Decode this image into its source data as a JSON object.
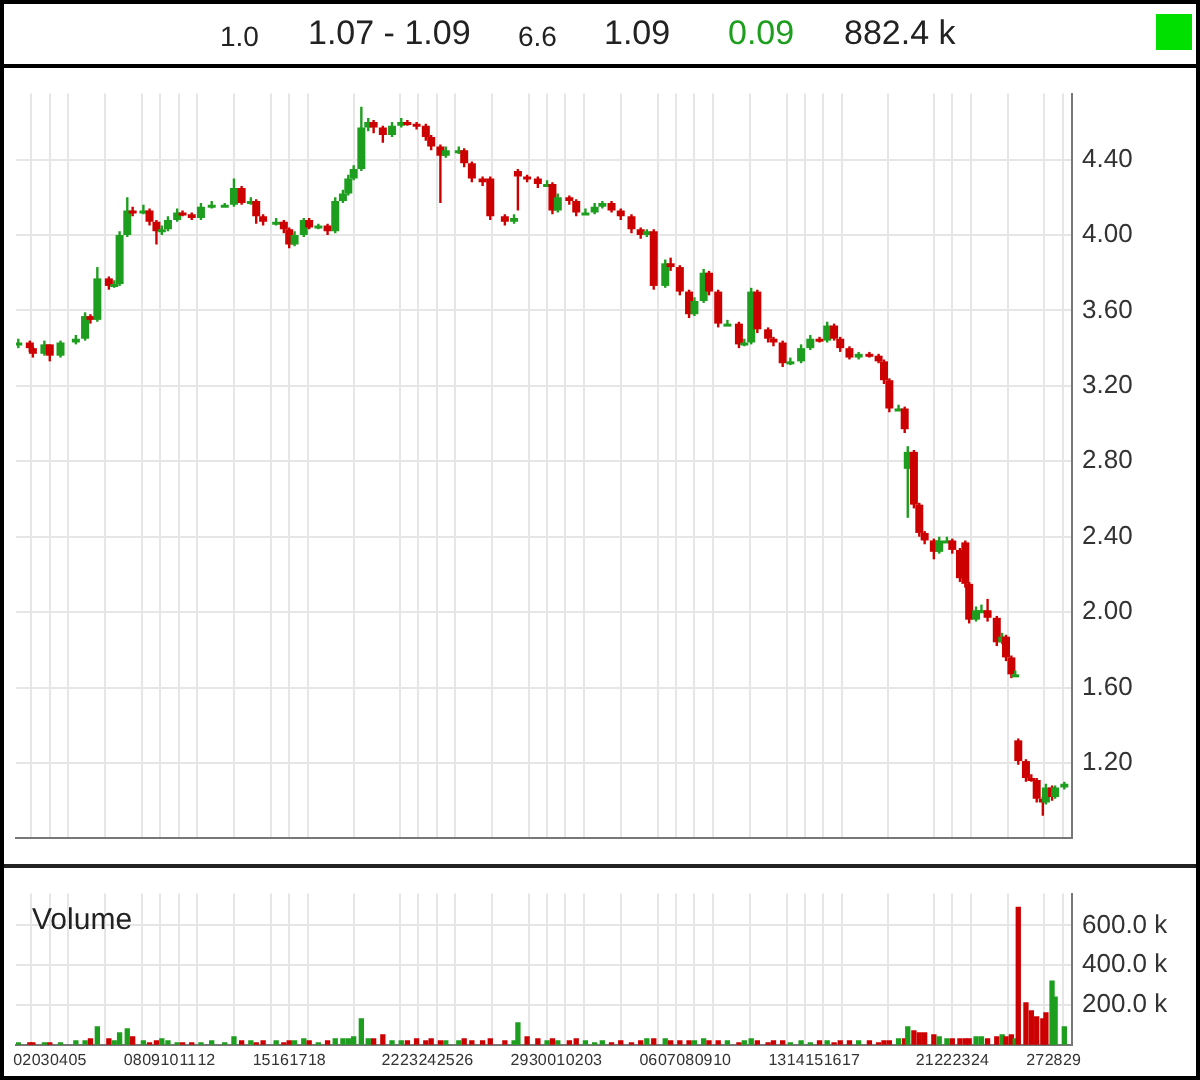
{
  "chart_data": [
    {
      "type": "candlestick",
      "annotations": [
        "1.0",
        "1.07 - 1.09",
        "6.6",
        "1.09",
        "0.09",
        "882.4 k"
      ],
      "x": [
        "--04-01T19:00",
        "--04-02T10:00",
        "--04-02T14:00",
        "--04-03T05:00",
        "--04-03T12:00",
        "--04-04T02:00",
        "--04-04T22:00",
        "--04-05T10:00",
        "--04-05T17:00",
        "--04-06T02:00",
        "--04-06T17:00",
        "--04-07T00:00",
        "--04-07T07:00",
        "--04-07T17:00",
        "--04-08T00:00",
        "--04-08T14:00",
        "--04-08T22:00",
        "--04-09T07:00",
        "--04-09T14:00",
        "--04-09T22:00",
        "--04-10T10:00",
        "--04-10T17:00",
        "--04-11T05:00",
        "--04-11T17:00",
        "--04-12T07:00",
        "--04-13T00:00",
        "--04-13T12:00",
        "--04-13T22:00",
        "--04-14T10:00",
        "--04-14T17:00",
        "--04-15T02:00",
        "--04-15T19:00",
        "--04-16T05:00",
        "--04-16T12:00",
        "--04-16T19:00",
        "--04-17T07:00",
        "--04-17T14:00",
        "--04-18T02:00",
        "--04-18T14:00",
        "--04-19T00:00",
        "--04-19T10:00",
        "--04-19T17:00",
        "--04-20T00:00",
        "--04-20T10:00",
        "--04-20T19:00",
        "--04-21T02:00",
        "--04-21T14:00",
        "--04-22T02:00",
        "--04-22T14:00",
        "--04-22T22:00",
        "--04-23T10:00",
        "--04-23T22:00",
        "--04-24T05:00",
        "--04-24T17:00",
        "--04-25T00:00",
        "--04-25T17:00",
        "--04-26T00:00",
        "--04-26T10:00",
        "--04-27T00:00",
        "--04-27T10:00",
        "--04-28T05:00",
        "--04-28T17:00",
        "--04-28T22:00",
        "--04-29T10:00",
        "--04-30T00:00",
        "--04-30T12:00",
        "--04-30T19:00",
        "--05-01T02:00",
        "--05-01T17:00",
        "--05-02T02:00",
        "--05-02T14:00",
        "--05-03T02:00",
        "--05-03T12:00",
        "--05-04T00:00",
        "--05-04T12:00",
        "--05-05T02:00",
        "--05-05T14:00",
        "--05-05T22:00",
        "--05-06T07:00",
        "--05-06T22:00",
        "--05-07T05:00",
        "--05-07T17:00",
        "--05-08T05:00",
        "--05-08T12:00",
        "--05-09T00:00",
        "--05-09T07:00",
        "--05-09T19:00",
        "--05-10T07:00",
        "--05-10T22:00",
        "--05-11T05:00",
        "--05-11T14:00",
        "--05-11T22:00",
        "--05-12T12:00",
        "--05-12T19:00",
        "--05-13T07:00",
        "--05-13T17:00",
        "--05-14T07:00",
        "--05-14T19:00",
        "--05-15T07:00",
        "--05-15T17:00",
        "--05-16T02:00",
        "--05-16T10:00",
        "--05-16T22:00",
        "--05-17T10:00",
        "--05-18T00:00",
        "--05-18T12:00",
        "--05-18T19:00",
        "--05-19T02:00",
        "--05-19T14:00",
        "--05-19T22:00",
        "--05-20T02:00",
        "--05-20T10:00",
        "--05-20T17:00",
        "--05-21T00:00",
        "--05-21T12:00",
        "--05-21T19:00",
        "--05-22T05:00",
        "--05-22T12:00",
        "--05-22T22:00",
        "--05-23T05:00",
        "--05-23T10:00",
        "--05-23T19:00",
        "--05-24T02:00",
        "--05-24T10:00",
        "--05-24T22:00",
        "--05-25T05:00",
        "--05-25T10:00",
        "--05-25T17:00",
        "--05-25T22:00",
        "--05-26T02:00",
        "--05-26T12:00",
        "--05-26T19:00",
        "--05-27T02:00",
        "--05-27T10:00",
        "--05-27T14:00",
        "--05-27T22:00",
        "--05-28T02:00",
        "--05-28T14:00"
      ],
      "ohlc": [
        [
          3.42,
          3.45,
          3.4,
          3.43
        ],
        [
          3.43,
          3.44,
          3.38,
          3.4
        ],
        [
          3.4,
          3.41,
          3.35,
          3.37
        ],
        [
          3.37,
          3.44,
          3.36,
          3.42
        ],
        [
          3.42,
          3.42,
          3.33,
          3.36
        ],
        [
          3.36,
          3.44,
          3.35,
          3.43
        ],
        [
          3.43,
          3.47,
          3.42,
          3.45
        ],
        [
          3.45,
          3.59,
          3.44,
          3.57
        ],
        [
          3.57,
          3.58,
          3.53,
          3.55
        ],
        [
          3.55,
          3.83,
          3.54,
          3.77
        ],
        [
          3.77,
          3.78,
          3.71,
          3.73
        ],
        [
          3.73,
          3.76,
          3.72,
          3.74
        ],
        [
          3.74,
          4.02,
          3.73,
          4.0
        ],
        [
          4.0,
          4.2,
          3.99,
          4.13
        ],
        [
          4.13,
          4.15,
          4.1,
          4.12
        ],
        [
          4.12,
          4.16,
          4.11,
          4.13
        ],
        [
          4.13,
          4.14,
          4.05,
          4.07
        ],
        [
          4.07,
          4.08,
          3.95,
          4.02
        ],
        [
          4.02,
          4.05,
          4.0,
          4.03
        ],
        [
          4.03,
          4.1,
          4.02,
          4.08
        ],
        [
          4.08,
          4.14,
          4.07,
          4.12
        ],
        [
          4.12,
          4.13,
          4.1,
          4.11
        ],
        [
          4.11,
          4.12,
          4.08,
          4.09
        ],
        [
          4.09,
          4.17,
          4.08,
          4.15
        ],
        [
          4.15,
          4.18,
          4.14,
          4.16
        ],
        [
          4.16,
          4.17,
          4.15,
          4.16
        ],
        [
          4.16,
          4.3,
          4.15,
          4.25
        ],
        [
          4.25,
          4.26,
          4.16,
          4.17
        ],
        [
          4.17,
          4.2,
          4.16,
          4.18
        ],
        [
          4.18,
          4.19,
          4.06,
          4.1
        ],
        [
          4.1,
          4.11,
          4.05,
          4.07
        ],
        [
          4.07,
          4.09,
          4.05,
          4.07
        ],
        [
          4.07,
          4.08,
          4.01,
          4.03
        ],
        [
          4.03,
          4.04,
          3.93,
          3.95
        ],
        [
          3.95,
          4.02,
          3.94,
          4.0
        ],
        [
          4.0,
          4.09,
          3.99,
          4.08
        ],
        [
          4.08,
          4.09,
          4.03,
          4.04
        ],
        [
          4.04,
          4.06,
          4.03,
          4.05
        ],
        [
          4.05,
          4.06,
          4.0,
          4.02
        ],
        [
          4.02,
          4.2,
          4.01,
          4.18
        ],
        [
          4.18,
          4.24,
          4.17,
          4.22
        ],
        [
          4.22,
          4.32,
          4.21,
          4.3
        ],
        [
          4.3,
          4.37,
          4.29,
          4.35
        ],
        [
          4.35,
          4.68,
          4.34,
          4.57
        ],
        [
          4.57,
          4.62,
          4.55,
          4.6
        ],
        [
          4.6,
          4.61,
          4.54,
          4.57
        ],
        [
          4.57,
          4.58,
          4.49,
          4.53
        ],
        [
          4.53,
          4.6,
          4.52,
          4.58
        ],
        [
          4.58,
          4.62,
          4.57,
          4.6
        ],
        [
          4.6,
          4.61,
          4.58,
          4.59
        ],
        [
          4.59,
          4.6,
          4.56,
          4.58
        ],
        [
          4.58,
          4.59,
          4.5,
          4.52
        ],
        [
          4.52,
          4.53,
          4.45,
          4.47
        ],
        [
          4.47,
          4.48,
          4.17,
          4.42
        ],
        [
          4.42,
          4.47,
          4.41,
          4.45
        ],
        [
          4.45,
          4.47,
          4.43,
          4.45
        ],
        [
          4.45,
          4.46,
          4.36,
          4.38
        ],
        [
          4.38,
          4.39,
          4.28,
          4.3
        ],
        [
          4.3,
          4.31,
          4.26,
          4.28
        ],
        [
          4.3,
          4.31,
          4.08,
          4.1
        ],
        [
          4.1,
          4.11,
          4.05,
          4.07
        ],
        [
          4.07,
          4.11,
          4.06,
          4.09
        ],
        [
          4.34,
          4.35,
          4.13,
          4.31
        ],
        [
          4.31,
          4.32,
          4.28,
          4.3
        ],
        [
          4.3,
          4.31,
          4.25,
          4.27
        ],
        [
          4.27,
          4.29,
          4.26,
          4.27
        ],
        [
          4.27,
          4.28,
          4.11,
          4.13
        ],
        [
          4.13,
          4.22,
          4.12,
          4.2
        ],
        [
          4.2,
          4.21,
          4.16,
          4.18
        ],
        [
          4.18,
          4.19,
          4.1,
          4.12
        ],
        [
          4.12,
          4.14,
          4.11,
          4.12
        ],
        [
          4.12,
          4.17,
          4.11,
          4.15
        ],
        [
          4.15,
          4.18,
          4.14,
          4.17
        ],
        [
          4.17,
          4.18,
          4.12,
          4.13
        ],
        [
          4.13,
          4.14,
          4.08,
          4.1
        ],
        [
          4.1,
          4.11,
          4.01,
          4.03
        ],
        [
          4.03,
          4.04,
          3.98,
          4.0
        ],
        [
          4.0,
          4.03,
          3.99,
          4.02
        ],
        [
          4.02,
          4.03,
          3.71,
          3.73
        ],
        [
          3.73,
          3.87,
          3.72,
          3.85
        ],
        [
          3.85,
          3.88,
          3.81,
          3.83
        ],
        [
          3.83,
          3.84,
          3.68,
          3.7
        ],
        [
          3.7,
          3.71,
          3.56,
          3.58
        ],
        [
          3.58,
          3.67,
          3.57,
          3.65
        ],
        [
          3.65,
          3.82,
          3.64,
          3.8
        ],
        [
          3.8,
          3.81,
          3.68,
          3.7
        ],
        [
          3.7,
          3.71,
          3.51,
          3.53
        ],
        [
          3.53,
          3.55,
          3.52,
          3.53
        ],
        [
          3.53,
          3.54,
          3.4,
          3.42
        ],
        [
          3.42,
          3.45,
          3.41,
          3.43
        ],
        [
          3.43,
          3.72,
          3.42,
          3.7
        ],
        [
          3.7,
          3.71,
          3.48,
          3.5
        ],
        [
          3.5,
          3.51,
          3.43,
          3.45
        ],
        [
          3.45,
          3.46,
          3.41,
          3.43
        ],
        [
          3.43,
          3.44,
          3.3,
          3.32
        ],
        [
          3.32,
          3.35,
          3.31,
          3.33
        ],
        [
          3.33,
          3.42,
          3.32,
          3.4
        ],
        [
          3.4,
          3.47,
          3.39,
          3.45
        ],
        [
          3.45,
          3.46,
          3.43,
          3.44
        ],
        [
          3.44,
          3.54,
          3.43,
          3.52
        ],
        [
          3.52,
          3.53,
          3.44,
          3.45
        ],
        [
          3.45,
          3.46,
          3.38,
          3.4
        ],
        [
          3.4,
          3.41,
          3.34,
          3.35
        ],
        [
          3.35,
          3.38,
          3.34,
          3.37
        ],
        [
          3.37,
          3.38,
          3.35,
          3.36
        ],
        [
          3.36,
          3.37,
          3.32,
          3.33
        ],
        [
          3.33,
          3.34,
          3.21,
          3.23
        ],
        [
          3.23,
          3.24,
          3.06,
          3.08
        ],
        [
          3.08,
          3.1,
          3.07,
          3.08
        ],
        [
          3.08,
          3.09,
          2.95,
          2.97
        ],
        [
          2.76,
          2.88,
          2.5,
          2.85
        ],
        [
          2.85,
          2.86,
          2.55,
          2.57
        ],
        [
          2.57,
          2.58,
          2.4,
          2.42
        ],
        [
          2.42,
          2.43,
          2.36,
          2.38
        ],
        [
          2.38,
          2.39,
          2.28,
          2.32
        ],
        [
          2.32,
          2.4,
          2.31,
          2.38
        ],
        [
          2.38,
          2.4,
          2.37,
          2.38
        ],
        [
          2.38,
          2.39,
          2.31,
          2.33
        ],
        [
          2.33,
          2.34,
          2.16,
          2.18
        ],
        [
          2.37,
          2.38,
          2.13,
          2.15
        ],
        [
          2.15,
          2.16,
          1.94,
          1.96
        ],
        [
          1.96,
          2.03,
          1.95,
          2.01
        ],
        [
          2.01,
          2.04,
          2.0,
          2.01
        ],
        [
          2.01,
          2.07,
          1.95,
          1.97
        ],
        [
          1.97,
          1.98,
          1.82,
          1.84
        ],
        [
          1.84,
          1.89,
          1.83,
          1.87
        ],
        [
          1.87,
          1.88,
          1.74,
          1.76
        ],
        [
          1.76,
          1.77,
          1.65,
          1.67
        ],
        [
          1.67,
          1.69,
          1.66,
          1.67
        ],
        [
          1.32,
          1.33,
          1.19,
          1.21
        ],
        [
          1.21,
          1.22,
          1.1,
          1.12
        ],
        [
          1.12,
          1.14,
          1.1,
          1.11
        ],
        [
          1.11,
          1.12,
          0.99,
          1.01
        ],
        [
          1.01,
          1.02,
          0.92,
          0.99
        ],
        [
          0.99,
          1.09,
          0.98,
          1.07
        ],
        [
          1.07,
          1.08,
          1.0,
          1.02
        ],
        [
          1.02,
          1.08,
          1.01,
          1.07
        ],
        [
          1.07,
          1.1,
          1.06,
          1.09
        ]
      ],
      "colors": [
        "#1e9e1e",
        "#cc0000",
        "#cc0000",
        "#1e9e1e",
        "#cc0000",
        "#1e9e1e",
        "#1e9e1e",
        "#1e9e1e",
        "#cc0000",
        "#1e9e1e",
        "#cc0000",
        "#1e9e1e",
        "#1e9e1e",
        "#1e9e1e",
        "#cc0000",
        "#1e9e1e",
        "#cc0000",
        "#cc0000",
        "#1e9e1e",
        "#1e9e1e",
        "#1e9e1e",
        "#cc0000",
        "#cc0000",
        "#1e9e1e",
        "#1e9e1e",
        "#1e9e1e",
        "#1e9e1e",
        "#cc0000",
        "#1e9e1e",
        "#cc0000",
        "#cc0000",
        "#1e9e1e",
        "#cc0000",
        "#cc0000",
        "#1e9e1e",
        "#1e9e1e",
        "#cc0000",
        "#1e9e1e",
        "#cc0000",
        "#1e9e1e",
        "#1e9e1e",
        "#1e9e1e",
        "#1e9e1e",
        "#1e9e1e",
        "#1e9e1e",
        "#cc0000",
        "#cc0000",
        "#1e9e1e",
        "#1e9e1e",
        "#cc0000",
        "#cc0000",
        "#cc0000",
        "#cc0000",
        "#cc0000",
        "#1e9e1e",
        "#1e9e1e",
        "#cc0000",
        "#cc0000",
        "#cc0000",
        "#cc0000",
        "#cc0000",
        "#1e9e1e",
        "#cc0000",
        "#cc0000",
        "#cc0000",
        "#1e9e1e",
        "#cc0000",
        "#1e9e1e",
        "#cc0000",
        "#cc0000",
        "#1e9e1e",
        "#1e9e1e",
        "#1e9e1e",
        "#cc0000",
        "#cc0000",
        "#cc0000",
        "#cc0000",
        "#1e9e1e",
        "#cc0000",
        "#1e9e1e",
        "#cc0000",
        "#cc0000",
        "#cc0000",
        "#1e9e1e",
        "#1e9e1e",
        "#cc0000",
        "#cc0000",
        "#1e9e1e",
        "#cc0000",
        "#1e9e1e",
        "#1e9e1e",
        "#cc0000",
        "#cc0000",
        "#cc0000",
        "#cc0000",
        "#1e9e1e",
        "#1e9e1e",
        "#1e9e1e",
        "#cc0000",
        "#1e9e1e",
        "#cc0000",
        "#cc0000",
        "#cc0000",
        "#1e9e1e",
        "#cc0000",
        "#cc0000",
        "#cc0000",
        "#cc0000",
        "#1e9e1e",
        "#cc0000",
        "#1e9e1e",
        "#cc0000",
        "#cc0000",
        "#cc0000",
        "#cc0000",
        "#1e9e1e",
        "#1e9e1e",
        "#cc0000",
        "#cc0000",
        "#cc0000",
        "#cc0000",
        "#1e9e1e",
        "#1e9e1e",
        "#cc0000",
        "#cc0000",
        "#1e9e1e",
        "#cc0000",
        "#cc0000",
        "#1e9e1e",
        "#cc0000",
        "#cc0000",
        "#cc0000",
        "#cc0000",
        "#cc0000",
        "#1e9e1e",
        "#cc0000",
        "#1e9e1e",
        "#1e9e1e"
      ],
      "xlim": [
        "--04-01T16:00",
        "--05-29T00:00"
      ],
      "xticks": [
        {
          "value": "--04-02",
          "label": "02"
        },
        {
          "value": "--04-03",
          "label": "03"
        },
        {
          "value": "--04-04",
          "label": "04"
        },
        {
          "value": "--04-05",
          "label": "05"
        },
        {
          "value": "--04-08",
          "label": "08"
        },
        {
          "value": "--04-09",
          "label": "09"
        },
        {
          "value": "--04-10",
          "label": "10"
        },
        {
          "value": "--04-11",
          "label": "11"
        },
        {
          "value": "--04-12",
          "label": "12"
        },
        {
          "value": "--04-15",
          "label": "15"
        },
        {
          "value": "--04-16",
          "label": "16"
        },
        {
          "value": "--04-17",
          "label": "17"
        },
        {
          "value": "--04-18",
          "label": "18"
        },
        {
          "value": "--04-22",
          "label": "22"
        },
        {
          "value": "--04-23",
          "label": "23"
        },
        {
          "value": "--04-24",
          "label": "24"
        },
        {
          "value": "--04-25",
          "label": "25"
        },
        {
          "value": "--04-26",
          "label": "26"
        },
        {
          "value": "--04-29",
          "label": "29"
        },
        {
          "value": "--04-30",
          "label": "30"
        },
        {
          "value": "--05-01",
          "label": "01"
        },
        {
          "value": "--05-02",
          "label": "02"
        },
        {
          "value": "--05-03",
          "label": "03"
        },
        {
          "value": "--05-06",
          "label": "06"
        },
        {
          "value": "--05-07",
          "label": "07"
        },
        {
          "value": "--05-08",
          "label": "08"
        },
        {
          "value": "--05-09",
          "label": "09"
        },
        {
          "value": "--05-10",
          "label": "10"
        },
        {
          "value": "--05-13",
          "label": "13"
        },
        {
          "value": "--05-14",
          "label": "14"
        },
        {
          "value": "--05-15",
          "label": "15"
        },
        {
          "value": "--05-16",
          "label": "16"
        },
        {
          "value": "--05-17",
          "label": "17"
        },
        {
          "value": "--05-21",
          "label": "21"
        },
        {
          "value": "--05-22",
          "label": "22"
        },
        {
          "value": "--05-23",
          "label": "23"
        },
        {
          "value": "--05-24",
          "label": "24"
        },
        {
          "value": "--05-27",
          "label": "27"
        },
        {
          "value": "--05-28",
          "label": "28"
        },
        {
          "value": "--05-29",
          "label": "29"
        }
      ],
      "ylim": [
        0.8,
        4.75
      ],
      "yticks": [
        {
          "value": 1.2,
          "label": "1.20"
        },
        {
          "value": 1.6,
          "label": "1.60"
        },
        {
          "value": 2.0,
          "label": "2.00"
        },
        {
          "value": 2.4,
          "label": "2.40"
        },
        {
          "value": 2.8,
          "label": "2.80"
        },
        {
          "value": 3.2,
          "label": "3.20"
        },
        {
          "value": 3.6,
          "label": "3.60"
        },
        {
          "value": 4.0,
          "label": "4.00"
        },
        {
          "value": 4.4,
          "label": "4.40"
        }
      ],
      "grid": true,
      "tick_labels": "y"
    },
    {
      "type": "bar",
      "title": "Volume",
      "x": [
        "--04-01T19:00",
        "--04-02T10:00",
        "--04-02T14:00",
        "--04-03T05:00",
        "--04-03T12:00",
        "--04-04T02:00",
        "--04-04T22:00",
        "--04-05T10:00",
        "--04-05T17:00",
        "--04-06T02:00",
        "--04-06T17:00",
        "--04-07T00:00",
        "--04-07T07:00",
        "--04-07T17:00",
        "--04-08T00:00",
        "--04-08T14:00",
        "--04-08T22:00",
        "--04-09T07:00",
        "--04-09T14:00",
        "--04-09T22:00",
        "--04-10T10:00",
        "--04-10T17:00",
        "--04-11T05:00",
        "--04-11T17:00",
        "--04-12T07:00",
        "--04-13T00:00",
        "--04-13T12:00",
        "--04-13T22:00",
        "--04-14T10:00",
        "--04-14T17:00",
        "--04-15T02:00",
        "--04-15T19:00",
        "--04-16T05:00",
        "--04-16T12:00",
        "--04-16T19:00",
        "--04-17T07:00",
        "--04-17T14:00",
        "--04-18T02:00",
        "--04-18T14:00",
        "--04-19T00:00",
        "--04-19T10:00",
        "--04-19T17:00",
        "--04-20T00:00",
        "--04-20T10:00",
        "--04-20T19:00",
        "--04-21T02:00",
        "--04-21T14:00",
        "--04-22T02:00",
        "--04-22T14:00",
        "--04-22T22:00",
        "--04-23T10:00",
        "--04-23T22:00",
        "--04-24T05:00",
        "--04-24T17:00",
        "--04-25T00:00",
        "--04-25T17:00",
        "--04-26T00:00",
        "--04-26T10:00",
        "--04-27T00:00",
        "--04-27T10:00",
        "--04-28T05:00",
        "--04-28T17:00",
        "--04-28T22:00",
        "--04-29T10:00",
        "--04-30T00:00",
        "--04-30T12:00",
        "--04-30T19:00",
        "--05-01T02:00",
        "--05-01T17:00",
        "--05-02T02:00",
        "--05-02T14:00",
        "--05-03T02:00",
        "--05-03T12:00",
        "--05-04T00:00",
        "--05-04T12:00",
        "--05-05T02:00",
        "--05-05T14:00",
        "--05-05T22:00",
        "--05-06T07:00",
        "--05-06T22:00",
        "--05-07T05:00",
        "--05-07T17:00",
        "--05-08T05:00",
        "--05-08T12:00",
        "--05-09T00:00",
        "--05-09T07:00",
        "--05-09T19:00",
        "--05-10T07:00",
        "--05-10T22:00",
        "--05-11T05:00",
        "--05-11T14:00",
        "--05-11T22:00",
        "--05-12T12:00",
        "--05-12T19:00",
        "--05-13T07:00",
        "--05-13T17:00",
        "--05-14T07:00",
        "--05-14T19:00",
        "--05-15T07:00",
        "--05-15T17:00",
        "--05-16T02:00",
        "--05-16T10:00",
        "--05-16T22:00",
        "--05-17T10:00",
        "--05-18T00:00",
        "--05-18T12:00",
        "--05-18T19:00",
        "--05-19T02:00",
        "--05-19T14:00",
        "--05-19T22:00",
        "--05-20T02:00",
        "--05-20T10:00",
        "--05-20T17:00",
        "--05-21T00:00",
        "--05-21T12:00",
        "--05-21T19:00",
        "--05-22T05:00",
        "--05-22T12:00",
        "--05-22T22:00",
        "--05-23T05:00",
        "--05-23T10:00",
        "--05-23T19:00",
        "--05-24T02:00",
        "--05-24T10:00",
        "--05-24T22:00",
        "--05-25T05:00",
        "--05-25T10:00",
        "--05-25T17:00",
        "--05-25T22:00",
        "--05-26T02:00",
        "--05-26T12:00",
        "--05-26T19:00",
        "--05-27T02:00",
        "--05-27T10:00",
        "--05-27T14:00",
        "--05-27T22:00",
        "--05-28T02:00",
        "--05-28T14:00"
      ],
      "values": [
        10000,
        10000,
        10000,
        10000,
        10000,
        10000,
        20000,
        20000,
        30000,
        90000,
        30000,
        20000,
        60000,
        80000,
        40000,
        20000,
        10000,
        20000,
        30000,
        20000,
        10000,
        10000,
        10000,
        10000,
        20000,
        10000,
        40000,
        20000,
        20000,
        10000,
        20000,
        20000,
        10000,
        20000,
        20000,
        30000,
        20000,
        10000,
        20000,
        30000,
        30000,
        30000,
        40000,
        130000,
        30000,
        30000,
        50000,
        20000,
        20000,
        20000,
        30000,
        20000,
        30000,
        20000,
        20000,
        20000,
        30000,
        20000,
        20000,
        30000,
        20000,
        20000,
        110000,
        40000,
        30000,
        20000,
        30000,
        20000,
        20000,
        30000,
        20000,
        10000,
        20000,
        10000,
        20000,
        10000,
        20000,
        30000,
        30000,
        30000,
        20000,
        20000,
        20000,
        20000,
        30000,
        20000,
        20000,
        20000,
        10000,
        20000,
        30000,
        20000,
        10000,
        20000,
        20000,
        10000,
        20000,
        10000,
        20000,
        20000,
        10000,
        20000,
        20000,
        20000,
        20000,
        10000,
        20000,
        20000,
        30000,
        30000,
        90000,
        70000,
        60000,
        60000,
        50000,
        40000,
        30000,
        30000,
        30000,
        30000,
        30000,
        40000,
        40000,
        30000,
        40000,
        50000,
        40000,
        50000,
        30000,
        690000,
        210000,
        170000,
        140000,
        130000,
        160000,
        320000,
        240000,
        90000
      ],
      "colors": [
        "#1e9e1e",
        "#cc0000",
        "#cc0000",
        "#1e9e1e",
        "#cc0000",
        "#1e9e1e",
        "#1e9e1e",
        "#1e9e1e",
        "#cc0000",
        "#1e9e1e",
        "#cc0000",
        "#1e9e1e",
        "#1e9e1e",
        "#1e9e1e",
        "#cc0000",
        "#1e9e1e",
        "#cc0000",
        "#cc0000",
        "#1e9e1e",
        "#1e9e1e",
        "#1e9e1e",
        "#cc0000",
        "#cc0000",
        "#1e9e1e",
        "#1e9e1e",
        "#1e9e1e",
        "#1e9e1e",
        "#cc0000",
        "#1e9e1e",
        "#cc0000",
        "#cc0000",
        "#1e9e1e",
        "#cc0000",
        "#cc0000",
        "#1e9e1e",
        "#1e9e1e",
        "#cc0000",
        "#1e9e1e",
        "#cc0000",
        "#1e9e1e",
        "#1e9e1e",
        "#1e9e1e",
        "#1e9e1e",
        "#1e9e1e",
        "#1e9e1e",
        "#cc0000",
        "#cc0000",
        "#1e9e1e",
        "#1e9e1e",
        "#cc0000",
        "#cc0000",
        "#cc0000",
        "#cc0000",
        "#cc0000",
        "#1e9e1e",
        "#1e9e1e",
        "#cc0000",
        "#cc0000",
        "#cc0000",
        "#cc0000",
        "#cc0000",
        "#1e9e1e",
        "#1e9e1e",
        "#cc0000",
        "#cc0000",
        "#1e9e1e",
        "#cc0000",
        "#1e9e1e",
        "#cc0000",
        "#cc0000",
        "#1e9e1e",
        "#1e9e1e",
        "#1e9e1e",
        "#cc0000",
        "#cc0000",
        "#cc0000",
        "#cc0000",
        "#1e9e1e",
        "#cc0000",
        "#1e9e1e",
        "#cc0000",
        "#cc0000",
        "#cc0000",
        "#1e9e1e",
        "#1e9e1e",
        "#cc0000",
        "#cc0000",
        "#1e9e1e",
        "#cc0000",
        "#1e9e1e",
        "#1e9e1e",
        "#cc0000",
        "#cc0000",
        "#cc0000",
        "#cc0000",
        "#1e9e1e",
        "#1e9e1e",
        "#1e9e1e",
        "#cc0000",
        "#1e9e1e",
        "#cc0000",
        "#cc0000",
        "#cc0000",
        "#1e9e1e",
        "#cc0000",
        "#cc0000",
        "#cc0000",
        "#cc0000",
        "#1e9e1e",
        "#cc0000",
        "#1e9e1e",
        "#cc0000",
        "#cc0000",
        "#cc0000",
        "#cc0000",
        "#1e9e1e",
        "#1e9e1e",
        "#cc0000",
        "#cc0000",
        "#cc0000",
        "#cc0000",
        "#1e9e1e",
        "#1e9e1e",
        "#cc0000",
        "#cc0000",
        "#1e9e1e",
        "#cc0000",
        "#cc0000",
        "#1e9e1e",
        "#cc0000",
        "#cc0000",
        "#cc0000",
        "#cc0000",
        "#cc0000",
        "#cc0000",
        "#1e9e1e",
        "#1e9e1e",
        "#1e9e1e"
      ],
      "xlim": [
        "--04-01T16:00",
        "--05-29T00:00"
      ],
      "xticks": [
        {
          "value": "--04-02",
          "label": "02"
        },
        {
          "value": "--04-03",
          "label": "03"
        },
        {
          "value": "--04-04",
          "label": "04"
        },
        {
          "value": "--04-05",
          "label": "05"
        },
        {
          "value": "--04-08",
          "label": "08"
        },
        {
          "value": "--04-09",
          "label": "09"
        },
        {
          "value": "--04-10",
          "label": "10"
        },
        {
          "value": "--04-11",
          "label": "11"
        },
        {
          "value": "--04-12",
          "label": "12"
        },
        {
          "value": "--04-15",
          "label": "15"
        },
        {
          "value": "--04-16",
          "label": "16"
        },
        {
          "value": "--04-17",
          "label": "17"
        },
        {
          "value": "--04-18",
          "label": "18"
        },
        {
          "value": "--04-22",
          "label": "22"
        },
        {
          "value": "--04-23",
          "label": "23"
        },
        {
          "value": "--04-24",
          "label": "24"
        },
        {
          "value": "--04-25",
          "label": "25"
        },
        {
          "value": "--04-26",
          "label": "26"
        },
        {
          "value": "--04-29",
          "label": "29"
        },
        {
          "value": "--04-30",
          "label": "30"
        },
        {
          "value": "--05-01",
          "label": "01"
        },
        {
          "value": "--05-02",
          "label": "02"
        },
        {
          "value": "--05-03",
          "label": "03"
        },
        {
          "value": "--05-06",
          "label": "06"
        },
        {
          "value": "--05-07",
          "label": "07"
        },
        {
          "value": "--05-08",
          "label": "08"
        },
        {
          "value": "--05-09",
          "label": "09"
        },
        {
          "value": "--05-10",
          "label": "10"
        },
        {
          "value": "--05-13",
          "label": "13"
        },
        {
          "value": "--05-14",
          "label": "14"
        },
        {
          "value": "--05-15",
          "label": "15"
        },
        {
          "value": "--05-16",
          "label": "16"
        },
        {
          "value": "--05-17",
          "label": "17"
        },
        {
          "value": "--05-21",
          "label": "21"
        },
        {
          "value": "--05-22",
          "label": "22"
        },
        {
          "value": "--05-23",
          "label": "23"
        },
        {
          "value": "--05-24",
          "label": "24"
        },
        {
          "value": "--05-27",
          "label": "27"
        },
        {
          "value": "--05-28",
          "label": "28"
        },
        {
          "value": "--05-29",
          "label": "29"
        }
      ],
      "ylim": [
        0,
        760000
      ],
      "yticks": [
        {
          "value": 200000,
          "label": "200.0 k"
        },
        {
          "value": 400000,
          "label": "400.0 k"
        },
        {
          "value": 600000,
          "label": "600.0 k"
        }
      ],
      "grid": true
    }
  ]
}
